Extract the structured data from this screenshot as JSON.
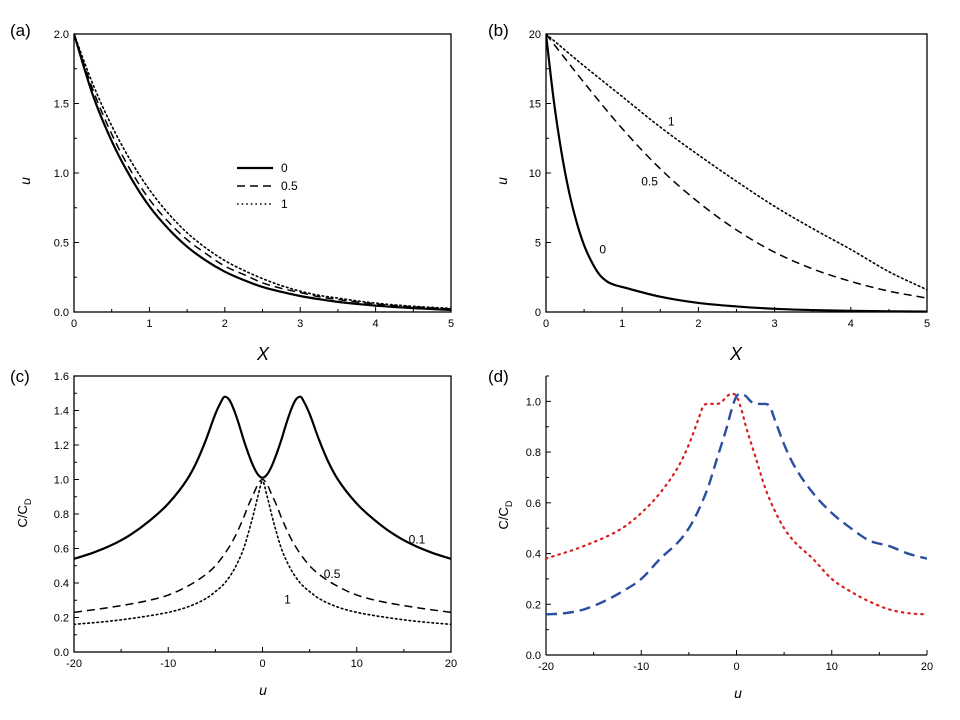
{
  "chart_data": [
    {
      "panel": "(a)",
      "type": "line",
      "xlabel": "X",
      "ylabel": "u",
      "xlim": [
        0,
        5
      ],
      "ylim": [
        0,
        2
      ],
      "xticks": [
        "0",
        "1",
        "2",
        "3",
        "4",
        "5"
      ],
      "yticks": [
        "0.0",
        "0.5",
        "1.0",
        "1.5",
        "2.0"
      ],
      "legend": {
        "placement": "center",
        "entries": [
          "0",
          "0.5",
          "1"
        ]
      },
      "series": [
        {
          "name": "0",
          "style": "solid",
          "x": [
            0,
            0.25,
            0.5,
            0.75,
            1,
            1.25,
            1.5,
            1.75,
            2,
            2.25,
            2.5,
            2.75,
            3,
            3.25,
            3.5,
            3.75,
            4,
            4.25,
            4.5,
            4.75,
            5
          ],
          "y": [
            2.0,
            1.56,
            1.23,
            0.97,
            0.76,
            0.6,
            0.47,
            0.37,
            0.29,
            0.23,
            0.18,
            0.145,
            0.115,
            0.092,
            0.073,
            0.058,
            0.046,
            0.036,
            0.028,
            0.021,
            0.015
          ]
        },
        {
          "name": "0.5",
          "style": "dashed",
          "x": [
            0,
            0.25,
            0.5,
            0.75,
            1,
            1.25,
            1.5,
            1.75,
            2,
            2.25,
            2.5,
            2.75,
            3,
            3.25,
            3.5,
            3.75,
            4,
            4.25,
            4.5,
            4.75,
            5
          ],
          "y": [
            2.0,
            1.6,
            1.28,
            1.02,
            0.81,
            0.65,
            0.52,
            0.42,
            0.33,
            0.27,
            0.21,
            0.17,
            0.14,
            0.11,
            0.09,
            0.072,
            0.058,
            0.046,
            0.037,
            0.029,
            0.022
          ]
        },
        {
          "name": "1",
          "style": "dotted",
          "x": [
            0,
            0.25,
            0.5,
            0.75,
            1,
            1.25,
            1.5,
            1.75,
            2,
            2.25,
            2.5,
            2.75,
            3,
            3.25,
            3.5,
            3.75,
            4,
            4.25,
            4.5,
            4.75,
            5
          ],
          "y": [
            2.0,
            1.64,
            1.34,
            1.09,
            0.88,
            0.71,
            0.57,
            0.46,
            0.37,
            0.3,
            0.24,
            0.19,
            0.15,
            0.12,
            0.1,
            0.08,
            0.064,
            0.051,
            0.041,
            0.033,
            0.026
          ]
        }
      ]
    },
    {
      "panel": "(b)",
      "type": "line",
      "xlabel": "X",
      "ylabel": "u",
      "xlim": [
        0,
        5
      ],
      "ylim": [
        0,
        20
      ],
      "xticks": [
        "0",
        "1",
        "2",
        "3",
        "4",
        "5"
      ],
      "yticks": [
        "0",
        "5",
        "10",
        "15",
        "20"
      ],
      "annotations": [
        {
          "text": "1",
          "x": 1.6,
          "y": 13.4
        },
        {
          "text": "0.5",
          "x": 1.25,
          "y": 9.1
        },
        {
          "text": "0",
          "x": 0.7,
          "y": 4.2
        }
      ],
      "series": [
        {
          "name": "0",
          "style": "solid",
          "x": [
            0,
            0.1,
            0.2,
            0.3,
            0.4,
            0.5,
            0.6,
            0.7,
            0.8,
            0.9,
            1.0,
            1.5,
            2,
            2.5,
            3,
            3.5,
            4,
            4.5,
            5
          ],
          "y": [
            20,
            15.3,
            11.6,
            8.7,
            6.5,
            4.8,
            3.6,
            2.7,
            2.2,
            1.95,
            1.8,
            1.1,
            0.65,
            0.4,
            0.23,
            0.14,
            0.08,
            0.05,
            0.03
          ]
        },
        {
          "name": "0.5",
          "style": "dashed",
          "x": [
            0,
            0.5,
            1,
            1.5,
            2,
            2.5,
            3,
            3.5,
            4,
            4.5,
            5
          ],
          "y": [
            20,
            16.5,
            13.2,
            10.3,
            7.9,
            5.9,
            4.3,
            3.1,
            2.2,
            1.5,
            1.0
          ]
        },
        {
          "name": "1",
          "style": "dotted",
          "x": [
            0,
            0.5,
            1,
            1.5,
            2,
            2.5,
            3,
            3.5,
            4,
            4.5,
            5
          ],
          "y": [
            20,
            17.7,
            15.5,
            13.3,
            11.3,
            9.4,
            7.6,
            6.0,
            4.5,
            2.9,
            1.6
          ]
        }
      ]
    },
    {
      "panel": "(c)",
      "type": "line",
      "xlabel": "u",
      "ylabel": "C/C_D",
      "xlim": [
        -20,
        20
      ],
      "ylim": [
        0,
        1.6
      ],
      "xticks": [
        "-20",
        "-10",
        "0",
        "10",
        "20"
      ],
      "yticks": [
        "0.0",
        "0.2",
        "0.4",
        "0.6",
        "0.8",
        "1.0",
        "1.2",
        "1.4",
        "1.6"
      ],
      "annotations": [
        {
          "text": "0.1",
          "x": 15.5,
          "y": 0.63
        },
        {
          "text": "0.5",
          "x": 6.5,
          "y": 0.43
        },
        {
          "text": "1",
          "x": 2.3,
          "y": 0.28
        }
      ],
      "series": [
        {
          "name": "0.1",
          "style": "solid",
          "x": [
            -20,
            -18,
            -16,
            -14,
            -12,
            -10,
            -8,
            -7,
            -6,
            -5,
            -4.5,
            -4,
            -3.5,
            -3,
            -2.5,
            -2,
            -1.5,
            -1,
            -0.5,
            0,
            0.5,
            1,
            1.5,
            2,
            2.5,
            3,
            3.5,
            4,
            4.5,
            5,
            6,
            7,
            8,
            10,
            12,
            14,
            16,
            18,
            20
          ],
          "y": [
            0.54,
            0.575,
            0.62,
            0.68,
            0.76,
            0.86,
            1.0,
            1.1,
            1.23,
            1.38,
            1.44,
            1.48,
            1.46,
            1.4,
            1.32,
            1.23,
            1.15,
            1.08,
            1.03,
            1.01,
            1.03,
            1.08,
            1.15,
            1.23,
            1.32,
            1.4,
            1.46,
            1.48,
            1.44,
            1.38,
            1.23,
            1.1,
            1.0,
            0.86,
            0.76,
            0.68,
            0.62,
            0.575,
            0.54
          ]
        },
        {
          "name": "0.5",
          "style": "dashed",
          "x": [
            -20,
            -16,
            -12,
            -10,
            -8,
            -6,
            -5,
            -4,
            -3,
            -2,
            -1.5,
            -1,
            -0.5,
            0,
            0.5,
            1,
            1.5,
            2,
            3,
            4,
            5,
            6,
            8,
            10,
            12,
            16,
            20
          ],
          "y": [
            0.23,
            0.26,
            0.3,
            0.33,
            0.38,
            0.45,
            0.5,
            0.57,
            0.66,
            0.78,
            0.85,
            0.91,
            0.97,
            1.0,
            0.97,
            0.91,
            0.85,
            0.78,
            0.66,
            0.57,
            0.5,
            0.45,
            0.38,
            0.33,
            0.3,
            0.26,
            0.23
          ]
        },
        {
          "name": "1",
          "style": "dotted",
          "x": [
            -20,
            -16,
            -12,
            -10,
            -8,
            -6,
            -5,
            -4,
            -3,
            -2,
            -1.5,
            -1,
            -0.5,
            0,
            0.5,
            1,
            1.5,
            2,
            3,
            4,
            5,
            6,
            8,
            10,
            12,
            16,
            20
          ],
          "y": [
            0.16,
            0.18,
            0.21,
            0.23,
            0.26,
            0.31,
            0.35,
            0.4,
            0.48,
            0.6,
            0.69,
            0.79,
            0.9,
            0.99,
            0.9,
            0.79,
            0.69,
            0.6,
            0.48,
            0.4,
            0.35,
            0.31,
            0.26,
            0.23,
            0.21,
            0.18,
            0.16
          ]
        }
      ]
    },
    {
      "panel": "(d)",
      "type": "line",
      "xlabel": "u",
      "ylabel": "C/C_D",
      "xlim": [
        -20,
        20
      ],
      "ylim": [
        0,
        1.1
      ],
      "xticks": [
        "-20",
        "-10",
        "0",
        "10",
        "20"
      ],
      "yticks": [
        "0.0",
        "0.2",
        "0.4",
        "0.6",
        "0.8",
        "1.0"
      ],
      "series": [
        {
          "name": "",
          "style": "dotted",
          "color": "#d62020",
          "x": [
            -20,
            -16,
            -12,
            -10,
            -8,
            -6,
            -5,
            -4,
            -3.5,
            -3,
            -2.5,
            -2,
            -1.5,
            -1,
            -0.5,
            0,
            0.5,
            1,
            2,
            3,
            4,
            5,
            6,
            8,
            10,
            12,
            14,
            16,
            18,
            20
          ],
          "y": [
            0.38,
            0.43,
            0.5,
            0.56,
            0.64,
            0.75,
            0.83,
            0.93,
            0.98,
            0.99,
            0.99,
            0.99,
            1.0,
            1.02,
            1.03,
            1.02,
            0.97,
            0.9,
            0.78,
            0.66,
            0.57,
            0.5,
            0.45,
            0.38,
            0.3,
            0.25,
            0.21,
            0.18,
            0.165,
            0.16
          ]
        },
        {
          "name": "",
          "style": "dashed",
          "color": "#2a4fa0",
          "x": [
            -20,
            -18,
            -16,
            -14,
            -12,
            -10,
            -8,
            -6,
            -5,
            -4,
            -3,
            -2,
            -1,
            -0.5,
            0,
            0.5,
            1,
            1.5,
            2,
            2.5,
            3,
            3.5,
            4,
            5,
            6,
            8,
            10,
            12,
            14,
            16,
            18,
            20
          ],
          "y": [
            0.16,
            0.165,
            0.18,
            0.21,
            0.25,
            0.3,
            0.38,
            0.45,
            0.5,
            0.57,
            0.66,
            0.78,
            0.9,
            0.97,
            1.02,
            1.03,
            1.02,
            1.0,
            0.99,
            0.99,
            0.99,
            0.98,
            0.93,
            0.83,
            0.75,
            0.64,
            0.56,
            0.5,
            0.45,
            0.43,
            0.4,
            0.38
          ]
        }
      ]
    }
  ]
}
